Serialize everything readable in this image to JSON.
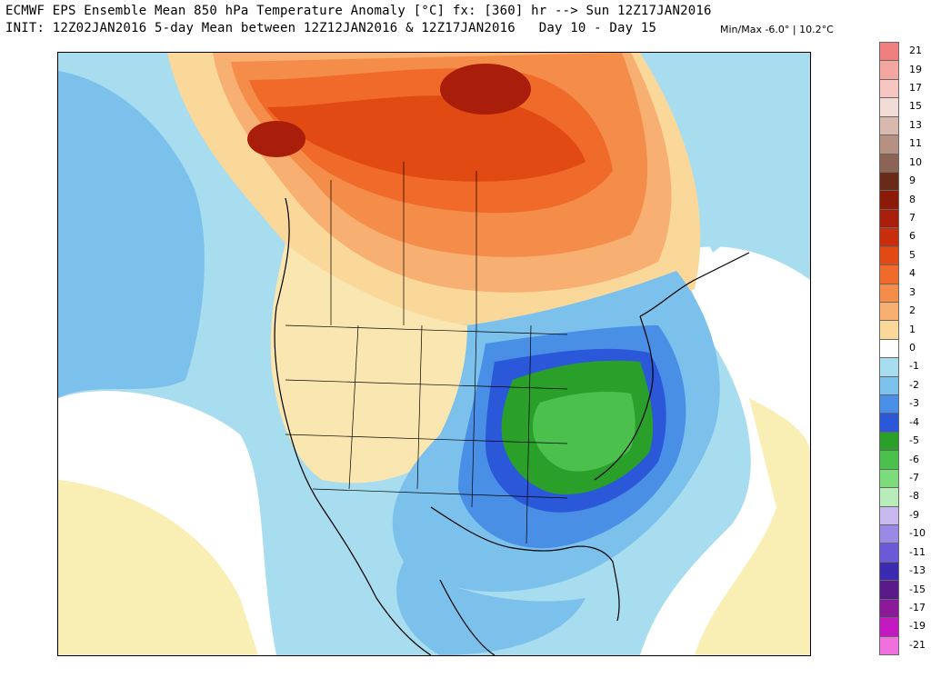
{
  "title": {
    "line1": "ECMWF EPS Ensemble Mean 850 hPa Temperature Anomaly [°C] fx: [360] hr --> Sun 12Z17JAN2016",
    "line2": "INIT: 12Z02JAN2016 5-day Mean between 12Z12JAN2016 & 12Z17JAN2016   Day 10 - Day 15",
    "minmax": "Min/Max -6.0° | 10.2°C"
  },
  "legend": {
    "labels": [
      "21",
      "19",
      "17",
      "15",
      "13",
      "11",
      "10",
      "9",
      "8",
      "7",
      "6",
      "5",
      "4",
      "3",
      "2",
      "1",
      "0",
      "-1",
      "-2",
      "-3",
      "-4",
      "-5",
      "-6",
      "-7",
      "-8",
      "-9",
      "-10",
      "-11",
      "-13",
      "-15",
      "-17",
      "-19",
      "-21"
    ],
    "colors": [
      "#f08080",
      "#f4a6a0",
      "#f7c6c0",
      "#f3dcd6",
      "#d9b8ae",
      "#b79084",
      "#8c6456",
      "#6a2a18",
      "#8b1a08",
      "#a81e0a",
      "#c82e0e",
      "#e24a14",
      "#f06a2a",
      "#f48c4a",
      "#f8b072",
      "#f9d89a",
      "#ffffff",
      "#a8dcef",
      "#7cc0ec",
      "#4a8fe6",
      "#2a58d8",
      "#2aa02a",
      "#4cc04c",
      "#7cdc7c",
      "#b8ecb8",
      "#c8b8f0",
      "#9a8ae6",
      "#6a5ad8",
      "#3a2ab0",
      "#5a1a8a",
      "#8a1a9a",
      "#c21ac0",
      "#f070e0"
    ]
  }
}
